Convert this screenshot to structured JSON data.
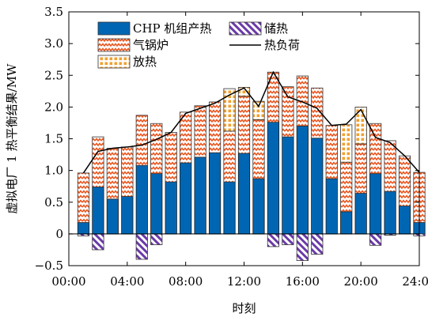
{
  "chart_data": {
    "type": "bar",
    "subtype": "stacked-bar-with-line",
    "xlabel": "时刻",
    "ylabel": "虚拟电厂 1 热平衡结果/MW",
    "xlim": [
      0,
      24
    ],
    "ylim": [
      -0.5,
      3.5
    ],
    "x_ticks": [
      0,
      4,
      8,
      12,
      16,
      20,
      24
    ],
    "x_tick_labels": [
      "00:00",
      "04:00",
      "08:00",
      "12:00",
      "16:00",
      "20:00",
      "24:00"
    ],
    "y_ticks": [
      -0.5,
      0,
      0.5,
      1.0,
      1.5,
      2.0,
      2.5,
      3.0,
      3.5
    ],
    "y_tick_labels": [
      "−0.5",
      "0",
      "0.5",
      "1.0",
      "1.5",
      "2.0",
      "2.5",
      "3.0",
      "3.5"
    ],
    "grid": false,
    "legend_position": "top",
    "colors": {
      "chp": "#0066b3",
      "storage": "#6a3aa8",
      "boiler": "#e8551e",
      "release": "#f0a030",
      "load": "#000000"
    },
    "hours": [
      1,
      2,
      3,
      4,
      5,
      6,
      7,
      8,
      9,
      10,
      11,
      12,
      13,
      14,
      15,
      16,
      17,
      18,
      19,
      20,
      21,
      22,
      23,
      24
    ],
    "series": [
      {
        "name": "CHP 机组产热",
        "key": "chp",
        "style": "solid",
        "values": [
          0.18,
          0.74,
          0.55,
          0.59,
          1.08,
          0.95,
          0.82,
          1.12,
          1.21,
          1.28,
          0.82,
          1.27,
          0.87,
          1.76,
          1.53,
          1.7,
          1.51,
          0.87,
          0.35,
          0.64,
          0.95,
          0.67,
          0.44,
          0.18
        ]
      },
      {
        "name": "气锅炉",
        "key": "boiler",
        "style": "wave",
        "values": [
          0.78,
          0.79,
          0.8,
          0.78,
          0.79,
          0.79,
          0.78,
          0.8,
          0.81,
          0.8,
          0.8,
          0.9,
          0.93,
          0.79,
          0.79,
          0.79,
          0.79,
          0.84,
          0.78,
          0.78,
          0.79,
          0.8,
          0.79,
          0.79
        ]
      },
      {
        "name": "放热",
        "key": "release",
        "style": "dots",
        "values": [
          0,
          0,
          0,
          0,
          0,
          0,
          0,
          0,
          0,
          0,
          0.67,
          0.14,
          0.29,
          0,
          0,
          0,
          0,
          0,
          0.59,
          0.58,
          0,
          0,
          0,
          0
        ]
      },
      {
        "name": "储热",
        "key": "storage",
        "style": "hatch",
        "values": [
          -0.03,
          -0.25,
          0,
          0,
          -0.4,
          -0.17,
          0,
          0,
          0,
          0,
          0,
          0,
          0,
          -0.2,
          -0.17,
          -0.42,
          -0.32,
          0,
          0,
          0,
          -0.18,
          -0.02,
          0,
          -0.03
        ]
      },
      {
        "name": "热负荷",
        "key": "load",
        "style": "line",
        "values": [
          0.96,
          1.3,
          1.35,
          1.37,
          1.4,
          1.49,
          1.6,
          1.9,
          1.98,
          2.06,
          2.19,
          2.3,
          2.01,
          2.55,
          2.16,
          2.08,
          1.98,
          1.71,
          1.73,
          1.96,
          1.52,
          1.44,
          1.23,
          0.97
        ]
      }
    ]
  }
}
